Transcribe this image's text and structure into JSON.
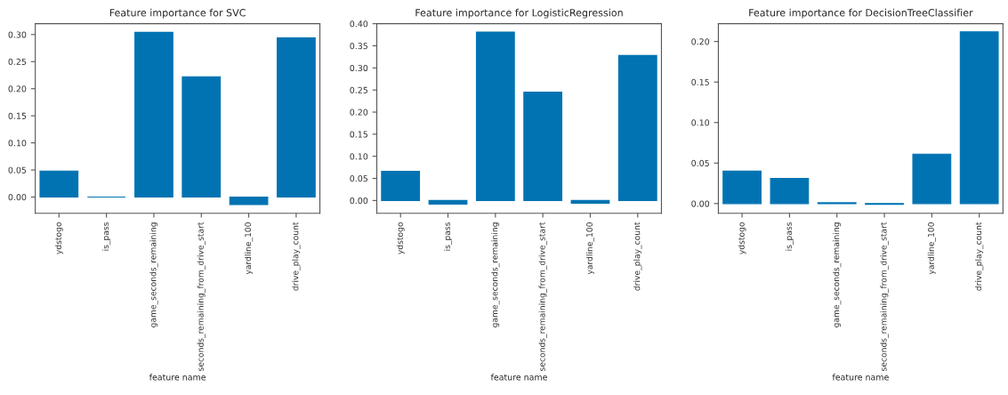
{
  "chart_data": [
    {
      "type": "bar",
      "title": "Feature importance for SVC",
      "xlabel": "feature name",
      "categories": [
        "ydstogo",
        "is_pass",
        "game_seconds_remaining",
        "seconds_remaining_from_drive_start",
        "yardline_100",
        "drive_play_count"
      ],
      "values": [
        0.048,
        0.0,
        0.304,
        0.222,
        -0.014,
        0.294
      ],
      "color": "#0173b2",
      "ylim": [
        -0.03,
        0.32
      ],
      "yticks": [
        {
          "value": 0,
          "label": "0.00"
        },
        {
          "value": 0.05,
          "label": "0.05"
        },
        {
          "value": 0.1,
          "label": "0.10"
        },
        {
          "value": 0.15,
          "label": "0.15"
        },
        {
          "value": 0.2,
          "label": "0.20"
        },
        {
          "value": 0.25,
          "label": "0.25"
        },
        {
          "value": 0.3,
          "label": "0.30"
        }
      ],
      "grid": false
    },
    {
      "type": "bar",
      "title": "Feature importance for LogisticRegression",
      "xlabel": "feature name",
      "categories": [
        "ydstogo",
        "is_pass",
        "game_seconds_remaining",
        "seconds_remaining_from_drive_start",
        "yardline_100",
        "drive_play_count"
      ],
      "values": [
        0.066,
        -0.008,
        0.381,
        0.245,
        -0.006,
        0.328
      ],
      "color": "#0173b2",
      "ylim": [
        -0.029,
        0.4
      ],
      "yticks": [
        {
          "value": 0,
          "label": "0.00"
        },
        {
          "value": 0.05,
          "label": "0.05"
        },
        {
          "value": 0.1,
          "label": "0.10"
        },
        {
          "value": 0.15,
          "label": "0.15"
        },
        {
          "value": 0.2,
          "label": "0.20"
        },
        {
          "value": 0.25,
          "label": "0.25"
        },
        {
          "value": 0.3,
          "label": "0.30"
        },
        {
          "value": 0.35,
          "label": "0.35"
        },
        {
          "value": 0.4,
          "label": "0.40"
        }
      ],
      "grid": false
    },
    {
      "type": "bar",
      "title": "Feature importance for DecisionTreeClassifier",
      "xlabel": "feature name",
      "categories": [
        "ydstogo",
        "is_pass",
        "game_seconds_remaining",
        "seconds_remaining_from_drive_start",
        "yardline_100",
        "drive_play_count"
      ],
      "values": [
        0.04,
        0.031,
        0.001,
        -0.001,
        0.061,
        0.212
      ],
      "color": "#0173b2",
      "ylim": [
        -0.012,
        0.222
      ],
      "yticks": [
        {
          "value": 0,
          "label": "0.00"
        },
        {
          "value": 0.05,
          "label": "0.05"
        },
        {
          "value": 0.1,
          "label": "0.10"
        },
        {
          "value": 0.15,
          "label": "0.15"
        },
        {
          "value": 0.2,
          "label": "0.20"
        }
      ],
      "grid": false
    }
  ]
}
